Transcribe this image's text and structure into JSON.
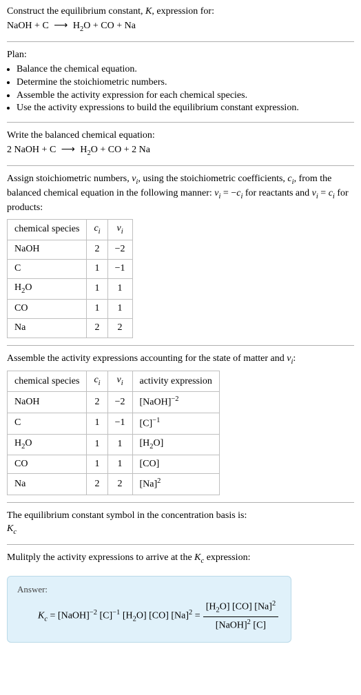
{
  "intro": {
    "line1_a": "Construct the equilibrium constant, ",
    "line1_K": "K",
    "line1_b": ", expression for:",
    "eq_lhs_1": "NaOH + C",
    "arrow": "⟶",
    "eq_rhs_1": "H",
    "eq_rhs_1b": "O + CO + Na",
    "sub2": "2"
  },
  "plan": {
    "title": "Plan:",
    "items": [
      "Balance the chemical equation.",
      "Determine the stoichiometric numbers.",
      "Assemble the activity expression for each chemical species.",
      "Use the activity expressions to build the equilibrium constant expression."
    ]
  },
  "balanced": {
    "title": "Write the balanced chemical equation:",
    "lhs": "2 NaOH + C",
    "arrow": "⟶",
    "rhs_a": "H",
    "rhs_b": "O + CO + 2 Na",
    "sub2": "2"
  },
  "stoich": {
    "text_a": "Assign stoichiometric numbers, ",
    "nu": "ν",
    "i": "i",
    "text_b": ", using the stoichiometric coefficients, ",
    "c": "c",
    "text_c": ", from the balanced chemical equation in the following manner: ",
    "rule_react_a": " = −",
    "rule_text_mid": " for reactants and ",
    "rule_prod_a": " = ",
    "rule_text_end": " for products:",
    "table": {
      "headers": {
        "h1": "chemical species",
        "h2_c": "c",
        "h2_i": "i",
        "h3_nu": "ν",
        "h3_i": "i"
      },
      "rows": [
        {
          "sp": "NaOH",
          "c": "2",
          "nu": "−2",
          "has_sub": false
        },
        {
          "sp": "C",
          "c": "1",
          "nu": "−1",
          "has_sub": false
        },
        {
          "sp_a": "H",
          "sp_sub": "2",
          "sp_b": "O",
          "c": "1",
          "nu": "1",
          "has_sub": true
        },
        {
          "sp": "CO",
          "c": "1",
          "nu": "1",
          "has_sub": false
        },
        {
          "sp": "Na",
          "c": "2",
          "nu": "2",
          "has_sub": false
        }
      ]
    }
  },
  "activity": {
    "text_a": "Assemble the activity expressions accounting for the state of matter and ",
    "nu": "ν",
    "i": "i",
    "text_b": ":",
    "table": {
      "headers": {
        "h1": "chemical species",
        "h2_c": "c",
        "h2_i": "i",
        "h3_nu": "ν",
        "h3_i": "i",
        "h4": "activity expression"
      },
      "rows": [
        {
          "sp": "NaOH",
          "c": "2",
          "nu": "−2",
          "ax_a": "[NaOH]",
          "ax_sup": "−2",
          "has_sub": false,
          "has_sup": true
        },
        {
          "sp": "C",
          "c": "1",
          "nu": "−1",
          "ax_a": "[C]",
          "ax_sup": "−1",
          "has_sub": false,
          "has_sup": true
        },
        {
          "sp_a": "H",
          "sp_sub": "2",
          "sp_b": "O",
          "c": "1",
          "nu": "1",
          "ax_a": "[H",
          "ax_sub": "2",
          "ax_b": "O]",
          "has_sub": true,
          "has_sup": false,
          "ax_has_sub": true
        },
        {
          "sp": "CO",
          "c": "1",
          "nu": "1",
          "ax_a": "[CO]",
          "has_sub": false,
          "has_sup": false
        },
        {
          "sp": "Na",
          "c": "2",
          "nu": "2",
          "ax_a": "[Na]",
          "ax_sup": "2",
          "has_sub": false,
          "has_sup": true
        }
      ]
    }
  },
  "kc_symbol": {
    "line1": "The equilibrium constant symbol in the concentration basis is:",
    "K": "K",
    "c": "c"
  },
  "multiply": {
    "text_a": "Mulitply the activity expressions to arrive at the ",
    "K": "K",
    "c": "c",
    "text_b": " expression:"
  },
  "answer": {
    "label": "Answer:",
    "K": "K",
    "c": "c",
    "eq": " = ",
    "t_naoh": "[NaOH]",
    "e_m2": "−2",
    "t_c": " [C]",
    "e_m1": "−1",
    "t_h2o_a": " [H",
    "sub2": "2",
    "t_h2o_b": "O] [CO] [Na]",
    "e_2": "2",
    "eq2": " = ",
    "num_a": "[H",
    "num_b": "O] [CO] [Na]",
    "den_a": "[NaOH]",
    "den_b": " [C]"
  }
}
